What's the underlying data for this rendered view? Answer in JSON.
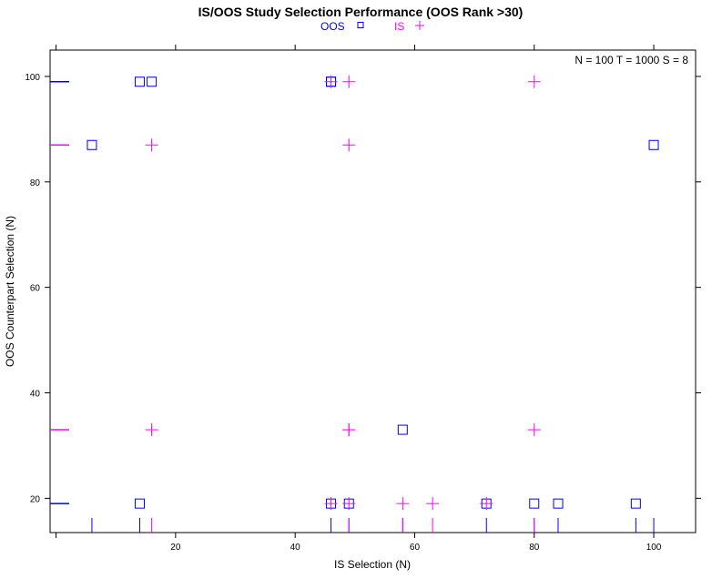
{
  "chart_data": {
    "type": "scatter",
    "title": "IS/OOS Study Selection Performance (OOS Rank >30)",
    "xlabel": "IS Selection (N)",
    "ylabel": "OOS Counterpart Selection (N)",
    "xlim": [
      -1,
      107
    ],
    "ylim": [
      13.5,
      105
    ],
    "x_ticks": [
      20,
      40,
      60,
      80,
      100
    ],
    "y_ticks": [
      20,
      40,
      60,
      80,
      100
    ],
    "annotation": "N = 100  T = 1000  S = 8",
    "legend": {
      "position": "top-center"
    },
    "series": [
      {
        "name": "OOS",
        "marker": "square",
        "color": "#0000ff",
        "points": [
          [
            6,
            87
          ],
          [
            14,
            99
          ],
          [
            14,
            19
          ],
          [
            16,
            99
          ],
          [
            46,
            99
          ],
          [
            46,
            99
          ],
          [
            46,
            19
          ],
          [
            49,
            19
          ],
          [
            58,
            33
          ],
          [
            72,
            19
          ],
          [
            80,
            19
          ],
          [
            84,
            19
          ],
          [
            97,
            19
          ],
          [
            100,
            87
          ]
        ]
      },
      {
        "name": "IS",
        "marker": "plus",
        "color": "#ff00ff",
        "points": [
          [
            16,
            87
          ],
          [
            16,
            33
          ],
          [
            46,
            99
          ],
          [
            46,
            19
          ],
          [
            49,
            99
          ],
          [
            49,
            87
          ],
          [
            49,
            33
          ],
          [
            49,
            33
          ],
          [
            49,
            19
          ],
          [
            58,
            19
          ],
          [
            63,
            19
          ],
          [
            72,
            19
          ],
          [
            80,
            99
          ],
          [
            80,
            33
          ]
        ]
      }
    ],
    "rug_x": [
      {
        "series": "OOS",
        "values": [
          6,
          14,
          46,
          49,
          58,
          72,
          80,
          84,
          97,
          100
        ]
      },
      {
        "series": "IS",
        "values": [
          16,
          49,
          58,
          63,
          80
        ]
      }
    ],
    "rug_y": [
      {
        "series": "OOS",
        "values": [
          99,
          19
        ]
      },
      {
        "series": "IS",
        "values": [
          87,
          33
        ]
      }
    ]
  }
}
